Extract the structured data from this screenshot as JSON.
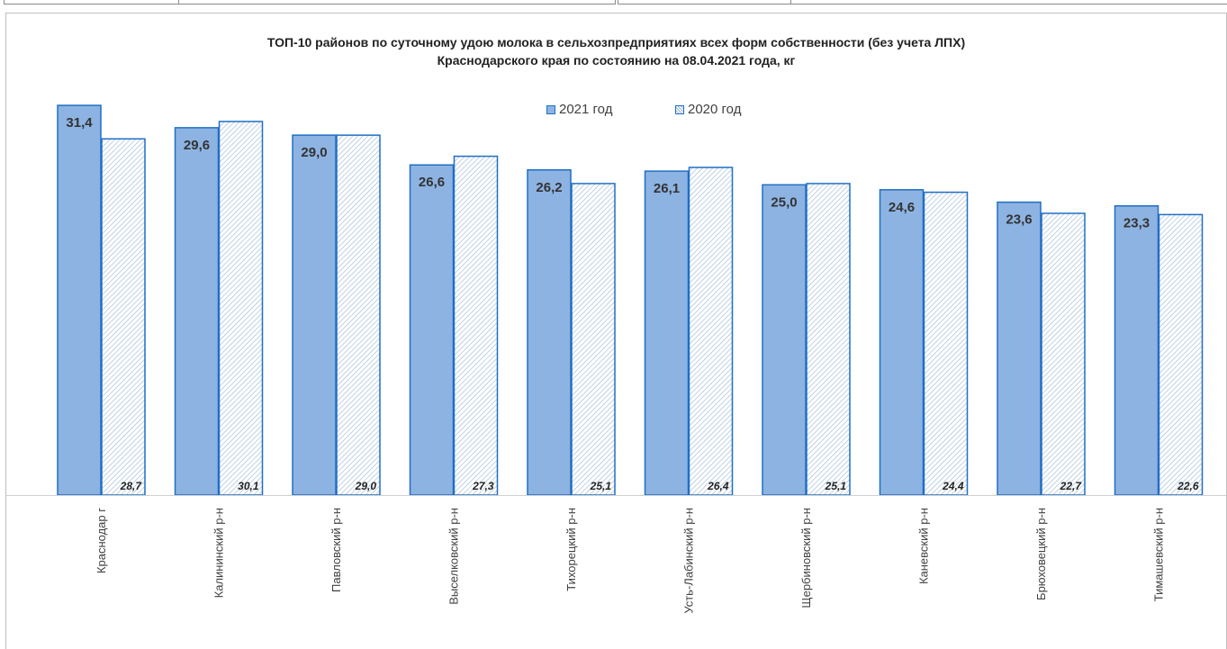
{
  "chart_data": {
    "type": "bar",
    "title_lines": [
      "ТОП-10 районов по суточному удою молока  в сельхозпредприятиях всех форм собственности (без учета ЛПХ)",
      "Краснодарского края по состоянию на 08.04.2021 года, кг"
    ],
    "categories": [
      "Краснодар г",
      "Калининский р-н",
      "Павловский р-н",
      "Выселковский р-н",
      "Тихорецкий р-н",
      "Усть-Лабинский р-н",
      "Щербиновский р-н",
      "Каневский р-н",
      "Брюховецкий р-н",
      "Тимашевский р-н"
    ],
    "series": [
      {
        "name": "2021 год",
        "values": [
          31.4,
          29.6,
          29.0,
          26.6,
          26.2,
          26.1,
          25.0,
          24.6,
          23.6,
          23.3
        ],
        "labels": [
          "31,4",
          "29,6",
          "29,0",
          "26,6",
          "26,2",
          "26,1",
          "25,0",
          "24,6",
          "23,6",
          "23,3"
        ],
        "fill": "#8db3e2",
        "stroke": "#1f6fc5"
      },
      {
        "name": "2020 год",
        "values": [
          28.7,
          30.1,
          29.0,
          27.3,
          25.1,
          26.4,
          25.1,
          24.4,
          22.7,
          22.6
        ],
        "labels": [
          "28,7",
          "30,1",
          "29,0",
          "27,3",
          "25,1",
          "26,4",
          "25,1",
          "24,4",
          "22,7",
          "22,6"
        ],
        "fill": "hatched",
        "stroke": "#1f6fc5"
      }
    ],
    "ylim": [
      0,
      33
    ],
    "legend_position": "top-center",
    "grid": false,
    "xlabel": "",
    "ylabel": ""
  }
}
